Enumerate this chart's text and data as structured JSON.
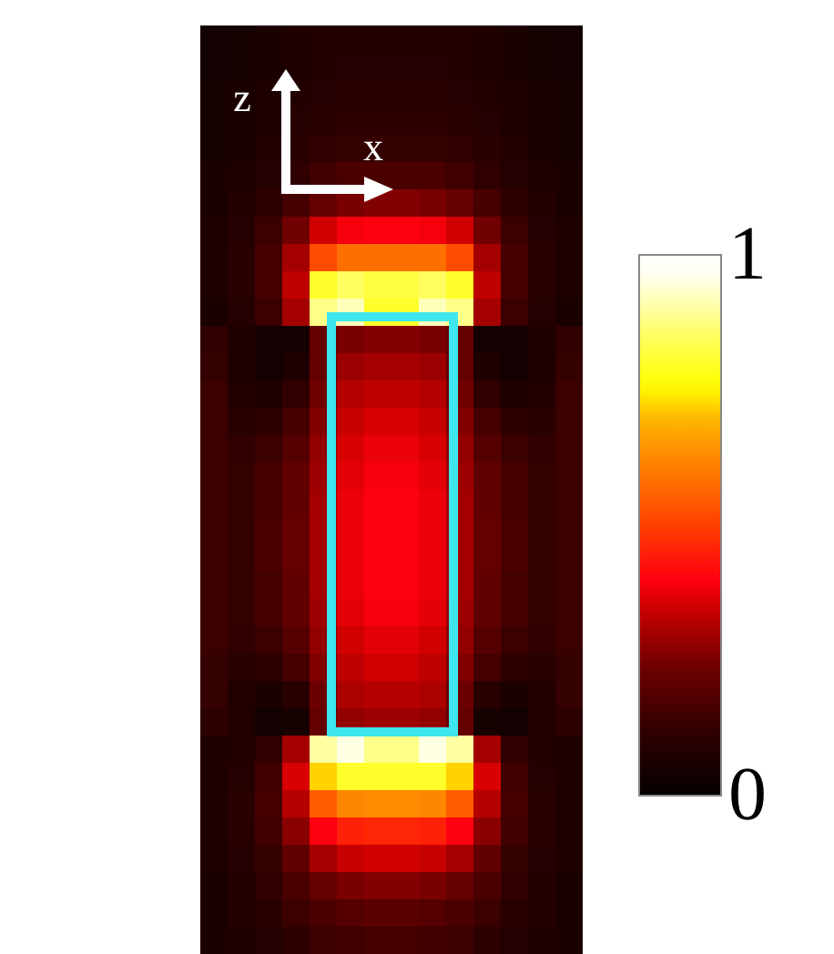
{
  "chart_data": {
    "type": "heatmap",
    "categories": [
      null,
      null,
      null,
      null,
      null,
      null,
      null,
      null,
      null,
      null,
      null,
      null,
      null,
      null
    ],
    "y_categories": [
      null,
      null,
      null,
      null,
      null,
      null,
      null,
      null,
      null,
      null,
      null,
      null,
      null,
      null,
      null,
      null,
      null,
      null,
      null,
      null,
      null,
      null,
      null,
      null,
      null,
      null,
      null,
      null,
      null,
      null,
      null,
      null,
      null,
      null
    ],
    "cells": [
      [
        0.04,
        0.05,
        0.06,
        0.07,
        0.08,
        0.08,
        0.08,
        0.08,
        0.08,
        0.08,
        0.07,
        0.06,
        0.05,
        0.04
      ],
      [
        0.04,
        0.05,
        0.06,
        0.07,
        0.08,
        0.09,
        0.09,
        0.09,
        0.09,
        0.08,
        0.07,
        0.06,
        0.05,
        0.04
      ],
      [
        0.05,
        0.06,
        0.07,
        0.08,
        0.09,
        0.1,
        0.1,
        0.1,
        0.1,
        0.09,
        0.08,
        0.07,
        0.06,
        0.05
      ],
      [
        0.05,
        0.06,
        0.07,
        0.09,
        0.1,
        0.11,
        0.11,
        0.11,
        0.11,
        0.1,
        0.09,
        0.07,
        0.06,
        0.05
      ],
      [
        0.05,
        0.06,
        0.08,
        0.1,
        0.12,
        0.13,
        0.13,
        0.13,
        0.13,
        0.12,
        0.1,
        0.08,
        0.06,
        0.05
      ],
      [
        0.06,
        0.07,
        0.09,
        0.12,
        0.15,
        0.17,
        0.17,
        0.17,
        0.17,
        0.15,
        0.12,
        0.09,
        0.07,
        0.06
      ],
      [
        0.06,
        0.08,
        0.11,
        0.16,
        0.22,
        0.25,
        0.26,
        0.26,
        0.25,
        0.22,
        0.16,
        0.11,
        0.08,
        0.06
      ],
      [
        0.07,
        0.09,
        0.14,
        0.24,
        0.35,
        0.39,
        0.4,
        0.4,
        0.39,
        0.35,
        0.24,
        0.14,
        0.09,
        0.07
      ],
      [
        0.07,
        0.1,
        0.16,
        0.3,
        0.52,
        0.58,
        0.58,
        0.58,
        0.58,
        0.52,
        0.3,
        0.16,
        0.1,
        0.07
      ],
      [
        0.07,
        0.1,
        0.16,
        0.33,
        0.8,
        0.85,
        0.82,
        0.82,
        0.85,
        0.8,
        0.33,
        0.16,
        0.1,
        0.07
      ],
      [
        0.06,
        0.09,
        0.14,
        0.3,
        0.88,
        0.92,
        0.8,
        0.8,
        0.92,
        0.88,
        0.3,
        0.14,
        0.09,
        0.06
      ],
      [
        0.12,
        0.07,
        0.04,
        0.04,
        0.22,
        0.25,
        0.26,
        0.26,
        0.25,
        0.22,
        0.04,
        0.04,
        0.07,
        0.12
      ],
      [
        0.13,
        0.07,
        0.04,
        0.07,
        0.22,
        0.29,
        0.3,
        0.3,
        0.29,
        0.22,
        0.07,
        0.04,
        0.07,
        0.13
      ],
      [
        0.14,
        0.08,
        0.07,
        0.12,
        0.24,
        0.32,
        0.33,
        0.33,
        0.32,
        0.24,
        0.12,
        0.07,
        0.08,
        0.14
      ],
      [
        0.14,
        0.1,
        0.11,
        0.16,
        0.26,
        0.34,
        0.36,
        0.36,
        0.34,
        0.26,
        0.16,
        0.11,
        0.1,
        0.14
      ],
      [
        0.14,
        0.12,
        0.14,
        0.19,
        0.28,
        0.36,
        0.38,
        0.38,
        0.36,
        0.28,
        0.19,
        0.14,
        0.12,
        0.14
      ],
      [
        0.14,
        0.13,
        0.16,
        0.21,
        0.29,
        0.37,
        0.39,
        0.39,
        0.37,
        0.29,
        0.21,
        0.16,
        0.13,
        0.14
      ],
      [
        0.14,
        0.13,
        0.16,
        0.21,
        0.3,
        0.38,
        0.4,
        0.4,
        0.38,
        0.3,
        0.21,
        0.16,
        0.13,
        0.14
      ],
      [
        0.14,
        0.13,
        0.17,
        0.22,
        0.3,
        0.38,
        0.4,
        0.4,
        0.38,
        0.3,
        0.22,
        0.17,
        0.13,
        0.14
      ],
      [
        0.14,
        0.13,
        0.17,
        0.22,
        0.3,
        0.38,
        0.4,
        0.4,
        0.38,
        0.3,
        0.22,
        0.17,
        0.13,
        0.14
      ],
      [
        0.14,
        0.13,
        0.16,
        0.21,
        0.3,
        0.38,
        0.4,
        0.4,
        0.38,
        0.3,
        0.21,
        0.16,
        0.13,
        0.14
      ],
      [
        0.14,
        0.13,
        0.16,
        0.21,
        0.29,
        0.37,
        0.39,
        0.39,
        0.37,
        0.29,
        0.21,
        0.16,
        0.13,
        0.14
      ],
      [
        0.14,
        0.12,
        0.14,
        0.19,
        0.28,
        0.35,
        0.37,
        0.37,
        0.35,
        0.28,
        0.19,
        0.14,
        0.12,
        0.14
      ],
      [
        0.13,
        0.1,
        0.11,
        0.16,
        0.26,
        0.33,
        0.35,
        0.35,
        0.33,
        0.26,
        0.16,
        0.11,
        0.1,
        0.13
      ],
      [
        0.13,
        0.08,
        0.06,
        0.1,
        0.23,
        0.31,
        0.32,
        0.32,
        0.31,
        0.23,
        0.1,
        0.06,
        0.08,
        0.13
      ],
      [
        0.11,
        0.08,
        0.04,
        0.05,
        0.22,
        0.28,
        0.29,
        0.29,
        0.28,
        0.22,
        0.05,
        0.04,
        0.08,
        0.11
      ],
      [
        0.07,
        0.08,
        0.12,
        0.3,
        0.9,
        0.95,
        0.88,
        0.88,
        0.95,
        0.9,
        0.3,
        0.12,
        0.08,
        0.07
      ],
      [
        0.07,
        0.09,
        0.15,
        0.36,
        0.72,
        0.8,
        0.8,
        0.8,
        0.8,
        0.72,
        0.36,
        0.15,
        0.09,
        0.07
      ],
      [
        0.07,
        0.1,
        0.16,
        0.32,
        0.55,
        0.62,
        0.63,
        0.63,
        0.62,
        0.55,
        0.32,
        0.16,
        0.1,
        0.07
      ],
      [
        0.07,
        0.1,
        0.15,
        0.27,
        0.4,
        0.45,
        0.46,
        0.46,
        0.45,
        0.4,
        0.27,
        0.15,
        0.1,
        0.07
      ],
      [
        0.07,
        0.09,
        0.13,
        0.21,
        0.3,
        0.34,
        0.35,
        0.35,
        0.34,
        0.3,
        0.21,
        0.13,
        0.09,
        0.07
      ],
      [
        0.06,
        0.08,
        0.12,
        0.17,
        0.22,
        0.25,
        0.26,
        0.26,
        0.25,
        0.22,
        0.17,
        0.12,
        0.08,
        0.06
      ],
      [
        0.06,
        0.08,
        0.1,
        0.14,
        0.17,
        0.19,
        0.2,
        0.2,
        0.19,
        0.17,
        0.14,
        0.1,
        0.08,
        0.06
      ],
      [
        0.06,
        0.07,
        0.09,
        0.11,
        0.14,
        0.15,
        0.16,
        0.16,
        0.15,
        0.14,
        0.11,
        0.09,
        0.07,
        0.06
      ]
    ],
    "clim": [
      0,
      1
    ],
    "cticks": [
      0,
      1
    ],
    "annotations": [
      "z",
      "x"
    ],
    "tick_labels": false
  }
}
